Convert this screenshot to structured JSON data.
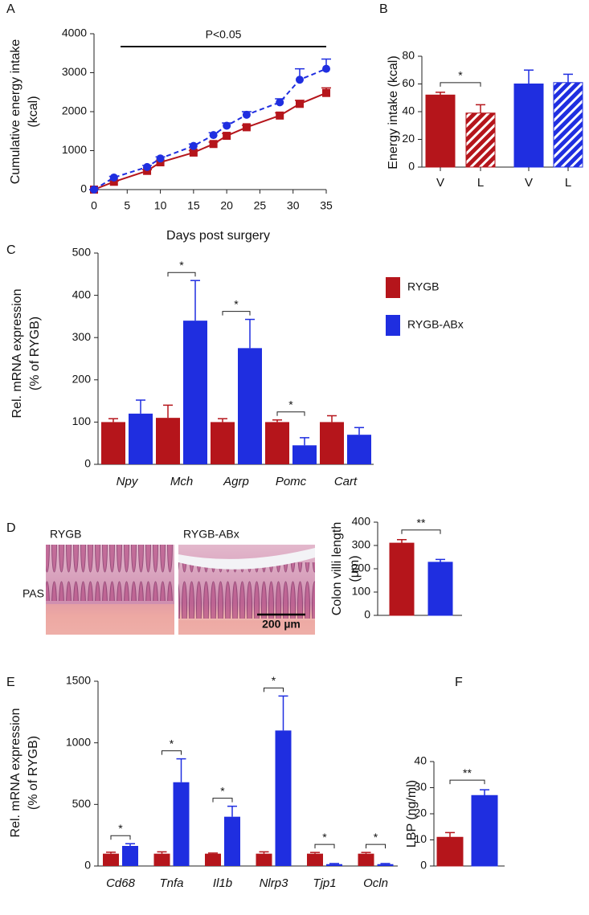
{
  "chart_data": [
    {
      "panel": "A",
      "type": "line",
      "x": [
        0,
        3,
        8,
        10,
        15,
        18,
        20,
        23,
        28,
        31,
        35
      ],
      "xlim": [
        0,
        35
      ],
      "xticks": [
        0,
        5,
        10,
        15,
        20,
        25,
        30,
        35
      ],
      "ylim": [
        0,
        4000
      ],
      "yticks": [
        0,
        1000,
        2000,
        3000,
        4000
      ],
      "xlabel": "Days post surgery",
      "ylabel": [
        "Cumulative energy intake",
        "(kcal)"
      ],
      "annotation": {
        "text": "P<0.05",
        "from": 4,
        "to": 35
      },
      "series": [
        {
          "color": "#b5151b",
          "marker": "square",
          "linestyle": "solid",
          "values": [
            0,
            200,
            480,
            700,
            950,
            1170,
            1380,
            1600,
            1900,
            2200,
            2480
          ],
          "errors": [
            0,
            20,
            30,
            40,
            50,
            50,
            60,
            50,
            70,
            90,
            130
          ]
        },
        {
          "color": "#1f2ee0",
          "marker": "circle",
          "linestyle": "dashed",
          "values": [
            0,
            310,
            580,
            800,
            1120,
            1400,
            1640,
            1920,
            2240,
            2820,
            3100
          ],
          "errors": [
            0,
            30,
            40,
            40,
            50,
            60,
            70,
            80,
            90,
            280,
            250
          ]
        }
      ]
    },
    {
      "panel": "B",
      "type": "bar",
      "categories": [
        "V",
        "L",
        "V",
        "L"
      ],
      "values": [
        52,
        39,
        60,
        61
      ],
      "errors": [
        2,
        6,
        10,
        6
      ],
      "colors": [
        "#b5151b",
        "#b5151b",
        "#1f2ee0",
        "#1f2ee0"
      ],
      "hatch": [
        false,
        true,
        false,
        true
      ],
      "ylim": [
        0,
        80
      ],
      "yticks": [
        0,
        20,
        40,
        60,
        80
      ],
      "ylabel": "Energy intake (kcal)",
      "significance": "*"
    },
    {
      "panel": "C",
      "type": "grouped-bar",
      "categories": [
        "Npy",
        "Mch",
        "Agrp",
        "Pomc",
        "Cart"
      ],
      "category_style": "italic",
      "series": [
        {
          "name": "RYGB",
          "color": "#b5151b",
          "values": [
            100,
            110,
            100,
            100,
            100
          ],
          "errors": [
            8,
            30,
            8,
            5,
            15
          ]
        },
        {
          "name": "RYGB-ABx",
          "color": "#1f2ee0",
          "values": [
            120,
            340,
            275,
            45,
            70
          ],
          "errors": [
            32,
            95,
            68,
            18,
            17
          ]
        }
      ],
      "ylim": [
        0,
        500
      ],
      "yticks": [
        0,
        100,
        200,
        300,
        400,
        500
      ],
      "ylabel": [
        "Rel. mRNA expression",
        "(% of RYGB)"
      ],
      "significance": [
        null,
        "*",
        "*",
        "*",
        null
      ],
      "legend": "right"
    },
    {
      "panel": "D",
      "type": "bar",
      "values": [
        310,
        228
      ],
      "errors": [
        15,
        12
      ],
      "colors": [
        "#b5151b",
        "#1f2ee0"
      ],
      "hatch": [
        false,
        false
      ],
      "ylim": [
        0,
        400
      ],
      "yticks": [
        0,
        100,
        200,
        300,
        400
      ],
      "ylabel": [
        "Colon villi length",
        "(µm)"
      ],
      "significance": "**"
    },
    {
      "panel": "E",
      "type": "grouped-bar",
      "categories": [
        "Cd68",
        "Tnfa",
        "Il1b",
        "Nlrp3",
        "Tjp1",
        "Ocln"
      ],
      "category_style": "italic",
      "series": [
        {
          "name": "RYGB",
          "color": "#b5151b",
          "values": [
            100,
            100,
            100,
            100,
            100,
            100
          ],
          "errors": [
            12,
            15,
            5,
            15,
            10,
            10
          ]
        },
        {
          "name": "RYGB-ABx",
          "color": "#1f2ee0",
          "values": [
            163,
            680,
            400,
            1100,
            15,
            15
          ],
          "errors": [
            18,
            190,
            85,
            280,
            5,
            5
          ]
        }
      ],
      "ylim": [
        0,
        1500
      ],
      "yticks": [
        0,
        500,
        1000,
        1500
      ],
      "ylabel": [
        "Rel. mRNA expression",
        "(% of RYGB)"
      ],
      "significance": [
        "*",
        "*",
        "*",
        "*",
        "*",
        "*"
      ]
    },
    {
      "panel": "F",
      "type": "bar",
      "values": [
        11,
        27
      ],
      "errors": [
        1.8,
        2.2
      ],
      "colors": [
        "#b5151b",
        "#1f2ee0"
      ],
      "hatch": [
        false,
        false
      ],
      "ylim": [
        0,
        40
      ],
      "yticks": [
        0,
        10,
        20,
        30,
        40
      ],
      "ylabel": "LBP (ng/ml)",
      "significance": "**"
    }
  ],
  "micrographs": {
    "labels": [
      "RYGB",
      "RYGB-ABx"
    ],
    "stain": "PAS",
    "scale_bar": "200 µm"
  }
}
